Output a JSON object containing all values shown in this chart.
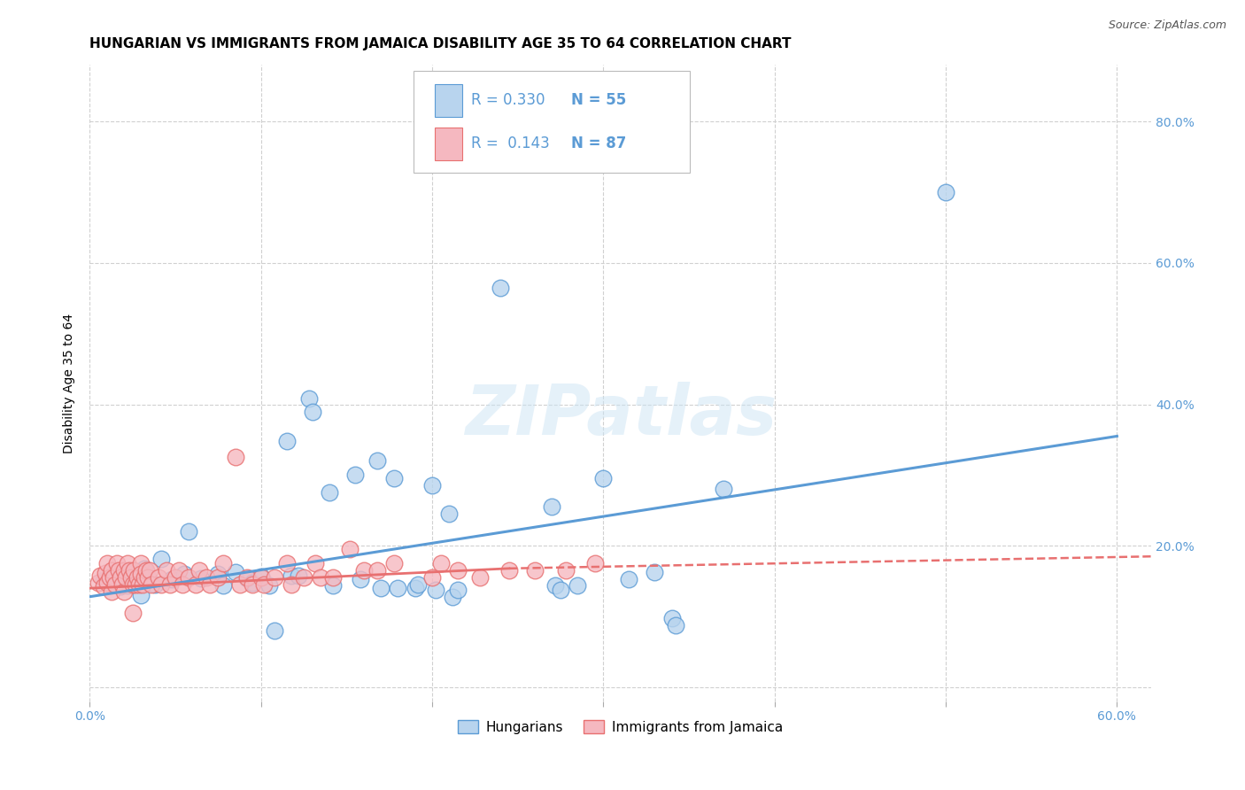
{
  "title": "HUNGARIAN VS IMMIGRANTS FROM JAMAICA DISABILITY AGE 35 TO 64 CORRELATION CHART",
  "source": "Source: ZipAtlas.com",
  "ylabel": "Disability Age 35 to 64",
  "xlim": [
    0.0,
    0.62
  ],
  "ylim": [
    -0.02,
    0.88
  ],
  "x_ticks": [
    0.0,
    0.1,
    0.2,
    0.3,
    0.4,
    0.5,
    0.6
  ],
  "x_tick_labels": [
    "0.0%",
    "",
    "",
    "",
    "",
    "",
    "60.0%"
  ],
  "y_ticks": [
    0.0,
    0.2,
    0.4,
    0.6,
    0.8
  ],
  "y_tick_labels_right": [
    "",
    "20.0%",
    "40.0%",
    "60.0%",
    "80.0%"
  ],
  "legend_entries": [
    {
      "label": "Hungarians",
      "R": "0.330",
      "N": "55"
    },
    {
      "label": "Immigrants from Jamaica",
      "R": "0.143",
      "N": "87"
    }
  ],
  "watermark": "ZIPatlas",
  "grid_color": "#d0d0d0",
  "blue_color": "#5b9bd5",
  "pink_color": "#e87070",
  "blue_fill": "#b8d4ee",
  "pink_fill": "#f5b8c0",
  "blue_scatter": [
    [
      0.008,
      0.152
    ],
    [
      0.012,
      0.148
    ],
    [
      0.016,
      0.156
    ],
    [
      0.018,
      0.143
    ],
    [
      0.02,
      0.158
    ],
    [
      0.022,
      0.144
    ],
    [
      0.025,
      0.16
    ],
    [
      0.028,
      0.153
    ],
    [
      0.03,
      0.13
    ],
    [
      0.032,
      0.168
    ],
    [
      0.038,
      0.145
    ],
    [
      0.042,
      0.182
    ],
    [
      0.048,
      0.153
    ],
    [
      0.055,
      0.16
    ],
    [
      0.058,
      0.22
    ],
    [
      0.065,
      0.154
    ],
    [
      0.075,
      0.16
    ],
    [
      0.078,
      0.144
    ],
    [
      0.085,
      0.163
    ],
    [
      0.092,
      0.154
    ],
    [
      0.095,
      0.148
    ],
    [
      0.1,
      0.156
    ],
    [
      0.105,
      0.144
    ],
    [
      0.108,
      0.08
    ],
    [
      0.115,
      0.348
    ],
    [
      0.118,
      0.158
    ],
    [
      0.122,
      0.158
    ],
    [
      0.128,
      0.408
    ],
    [
      0.13,
      0.39
    ],
    [
      0.14,
      0.275
    ],
    [
      0.142,
      0.144
    ],
    [
      0.155,
      0.3
    ],
    [
      0.158,
      0.153
    ],
    [
      0.168,
      0.32
    ],
    [
      0.17,
      0.14
    ],
    [
      0.178,
      0.295
    ],
    [
      0.18,
      0.14
    ],
    [
      0.19,
      0.14
    ],
    [
      0.192,
      0.145
    ],
    [
      0.2,
      0.285
    ],
    [
      0.202,
      0.138
    ],
    [
      0.21,
      0.245
    ],
    [
      0.212,
      0.128
    ],
    [
      0.215,
      0.138
    ],
    [
      0.24,
      0.565
    ],
    [
      0.27,
      0.255
    ],
    [
      0.272,
      0.144
    ],
    [
      0.275,
      0.138
    ],
    [
      0.285,
      0.144
    ],
    [
      0.3,
      0.295
    ],
    [
      0.315,
      0.153
    ],
    [
      0.33,
      0.163
    ],
    [
      0.34,
      0.098
    ],
    [
      0.342,
      0.088
    ],
    [
      0.37,
      0.28
    ],
    [
      0.5,
      0.7
    ]
  ],
  "pink_scatter": [
    [
      0.005,
      0.148
    ],
    [
      0.006,
      0.158
    ],
    [
      0.008,
      0.143
    ],
    [
      0.009,
      0.162
    ],
    [
      0.01,
      0.175
    ],
    [
      0.01,
      0.148
    ],
    [
      0.012,
      0.155
    ],
    [
      0.013,
      0.165
    ],
    [
      0.013,
      0.135
    ],
    [
      0.014,
      0.155
    ],
    [
      0.015,
      0.145
    ],
    [
      0.016,
      0.175
    ],
    [
      0.017,
      0.165
    ],
    [
      0.018,
      0.155
    ],
    [
      0.019,
      0.145
    ],
    [
      0.02,
      0.135
    ],
    [
      0.02,
      0.165
    ],
    [
      0.021,
      0.155
    ],
    [
      0.022,
      0.175
    ],
    [
      0.023,
      0.165
    ],
    [
      0.024,
      0.155
    ],
    [
      0.025,
      0.145
    ],
    [
      0.025,
      0.105
    ],
    [
      0.026,
      0.165
    ],
    [
      0.027,
      0.145
    ],
    [
      0.028,
      0.155
    ],
    [
      0.029,
      0.145
    ],
    [
      0.03,
      0.175
    ],
    [
      0.03,
      0.16
    ],
    [
      0.031,
      0.145
    ],
    [
      0.032,
      0.155
    ],
    [
      0.033,
      0.165
    ],
    [
      0.034,
      0.155
    ],
    [
      0.035,
      0.165
    ],
    [
      0.036,
      0.145
    ],
    [
      0.04,
      0.155
    ],
    [
      0.042,
      0.145
    ],
    [
      0.045,
      0.165
    ],
    [
      0.047,
      0.145
    ],
    [
      0.05,
      0.155
    ],
    [
      0.052,
      0.165
    ],
    [
      0.054,
      0.145
    ],
    [
      0.058,
      0.155
    ],
    [
      0.062,
      0.145
    ],
    [
      0.064,
      0.165
    ],
    [
      0.068,
      0.155
    ],
    [
      0.07,
      0.145
    ],
    [
      0.075,
      0.155
    ],
    [
      0.078,
      0.175
    ],
    [
      0.085,
      0.325
    ],
    [
      0.088,
      0.145
    ],
    [
      0.092,
      0.155
    ],
    [
      0.095,
      0.145
    ],
    [
      0.1,
      0.155
    ],
    [
      0.102,
      0.145
    ],
    [
      0.108,
      0.155
    ],
    [
      0.115,
      0.175
    ],
    [
      0.118,
      0.145
    ],
    [
      0.125,
      0.155
    ],
    [
      0.132,
      0.175
    ],
    [
      0.135,
      0.155
    ],
    [
      0.142,
      0.155
    ],
    [
      0.152,
      0.195
    ],
    [
      0.16,
      0.165
    ],
    [
      0.168,
      0.165
    ],
    [
      0.178,
      0.175
    ],
    [
      0.2,
      0.155
    ],
    [
      0.205,
      0.175
    ],
    [
      0.215,
      0.165
    ],
    [
      0.228,
      0.155
    ],
    [
      0.245,
      0.165
    ],
    [
      0.26,
      0.165
    ],
    [
      0.278,
      0.165
    ],
    [
      0.295,
      0.175
    ]
  ],
  "blue_trendline": [
    [
      0.0,
      0.128
    ],
    [
      0.6,
      0.355
    ]
  ],
  "pink_trendline_solid": [
    [
      0.0,
      0.14
    ],
    [
      0.245,
      0.168
    ]
  ],
  "pink_trendline_dashed": [
    [
      0.245,
      0.168
    ],
    [
      0.62,
      0.185
    ]
  ],
  "title_fontsize": 11,
  "axis_label_fontsize": 10,
  "tick_fontsize": 10,
  "legend_fontsize": 13
}
